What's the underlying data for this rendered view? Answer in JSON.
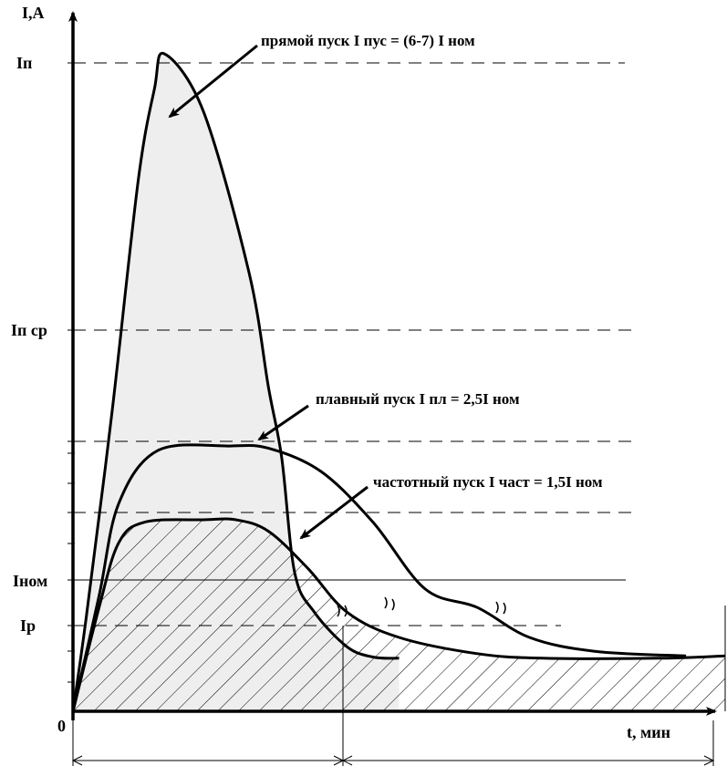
{
  "chart_data": {
    "type": "line",
    "ylabel": "I,А",
    "xlabel": "t, мин",
    "origin_label": "0",
    "y_levels": [
      {
        "label": "Iп"
      },
      {
        "label": "Iп ср"
      },
      {
        "label": "Iном"
      },
      {
        "label": "Iр"
      }
    ],
    "annotations": {
      "direct": "прямой пуск  I пус = (6-7) I ном",
      "soft": "плавный пуск I пл = 2,5I ном",
      "freq": "частотный пуск I част = 1,5I ном"
    },
    "series": [
      {
        "key": "direct",
        "values": [
          [
            0,
            0
          ],
          [
            0.02,
            4
          ],
          [
            0.06,
            13
          ],
          [
            0.1,
            23
          ],
          [
            0.125,
            27
          ],
          [
            0.14,
            28.5
          ],
          [
            0.2,
            26
          ],
          [
            0.27,
            19
          ],
          [
            0.3,
            14
          ],
          [
            0.32,
            11
          ],
          [
            0.34,
            6
          ],
          [
            0.37,
            4.3
          ],
          [
            0.42,
            2.8
          ],
          [
            0.46,
            2.35
          ],
          [
            0.5,
            2.3
          ]
        ]
      },
      {
        "key": "soft",
        "values": [
          [
            0,
            0
          ],
          [
            0.04,
            5
          ],
          [
            0.07,
            9
          ],
          [
            0.13,
            11.3
          ],
          [
            0.24,
            11.5
          ],
          [
            0.3,
            11.4
          ],
          [
            0.38,
            10.4
          ],
          [
            0.46,
            8.2
          ],
          [
            0.54,
            5.3
          ],
          [
            0.62,
            4.5
          ],
          [
            0.7,
            3.2
          ],
          [
            0.8,
            2.6
          ],
          [
            0.94,
            2.4
          ]
        ]
      },
      {
        "key": "freq",
        "values": [
          [
            0,
            0
          ],
          [
            0.04,
            4.5
          ],
          [
            0.07,
            7.3
          ],
          [
            0.11,
            8.2
          ],
          [
            0.2,
            8.3
          ],
          [
            0.25,
            8.3
          ],
          [
            0.3,
            7.8
          ],
          [
            0.36,
            6.2
          ],
          [
            0.42,
            4.3
          ],
          [
            0.5,
            3.2
          ],
          [
            0.62,
            2.5
          ],
          [
            0.72,
            2.3
          ],
          [
            0.9,
            2.3
          ],
          [
            1,
            2.4
          ]
        ]
      }
    ]
  }
}
